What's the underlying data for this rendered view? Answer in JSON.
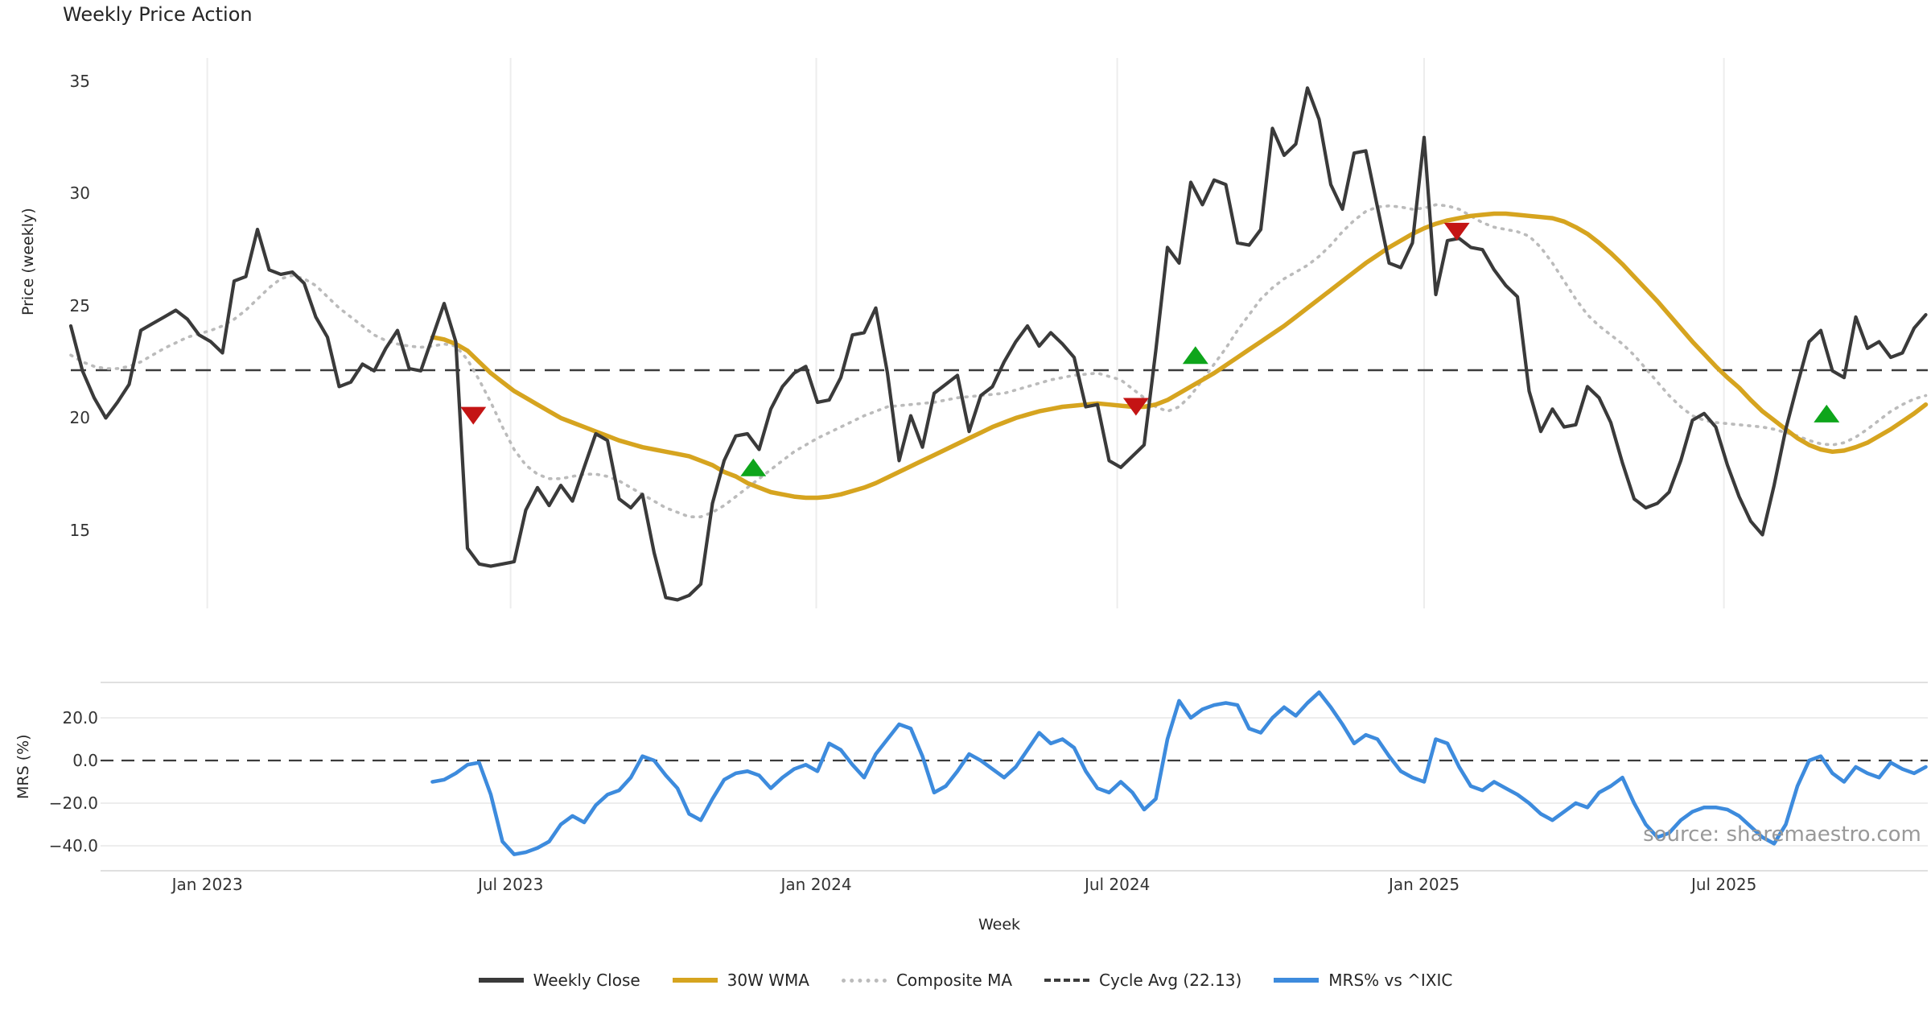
{
  "title": "Weekly Price Action",
  "source_text": "source: sharemaestro.com",
  "axes": {
    "price_label": "Price (weekly)",
    "mrs_label": "MRS (%)",
    "week_label": "Week",
    "price_ticks": [
      {
        "label": "35",
        "value": 35
      },
      {
        "label": "30",
        "value": 30
      },
      {
        "label": "25",
        "value": 25
      },
      {
        "label": "20",
        "value": 20
      },
      {
        "label": "15",
        "value": 15
      }
    ],
    "mrs_ticks": [
      {
        "label": "20.0",
        "value": 20
      },
      {
        "label": "0.0",
        "value": 0
      },
      {
        "label": "−20.0",
        "value": -20
      },
      {
        "label": "−40.0",
        "value": -40
      }
    ],
    "x_ticks": [
      {
        "label": "Jan 2023",
        "week": 11.7
      },
      {
        "label": "Jul 2023",
        "week": 37.7
      },
      {
        "label": "Jan 2024",
        "week": 63.9
      },
      {
        "label": "Jul 2024",
        "week": 89.7
      },
      {
        "label": "Jan 2025",
        "week": 116.0
      },
      {
        "label": "Jul 2025",
        "week": 141.7
      }
    ]
  },
  "colors": {
    "close": "#3a3a3a",
    "wma": "#d6a41f",
    "composite": "#bbbbbb",
    "cycle_avg": "#3c3c3c",
    "mrs": "#3d8bdd",
    "buy": "#0ea51b",
    "sell": "#c41414",
    "gridline": "#ededed",
    "panel_border": "#e0e0e0"
  },
  "legend": [
    {
      "label": "Weekly Close",
      "color": "#3a3a3a",
      "style": "solid"
    },
    {
      "label": "30W WMA",
      "color": "#d6a41f",
      "style": "solid"
    },
    {
      "label": "Composite MA",
      "color": "#bbbbbb",
      "style": "dotted"
    },
    {
      "label": "Cycle Avg (22.13)",
      "color": "#3c3c3c",
      "style": "dashed"
    },
    {
      "label": "MRS% vs ^IXIC",
      "color": "#3d8bdd",
      "style": "solid"
    }
  ],
  "chart_data": [
    {
      "type": "line",
      "panel": "price",
      "title": "Weekly Price Action",
      "xlabel": "Week",
      "ylabel": "Price (weekly)",
      "ylim": [
        11.5,
        36.5
      ],
      "grid": "vertical-only",
      "cycle_avg": 22.13,
      "x_unit": "weeks, week 0 ≈ Nov 2022, 14.5 px/week",
      "series": [
        {
          "name": "Weekly Close",
          "style": "solid",
          "start_week": 0,
          "values": [
            24.1,
            22.1,
            20.9,
            20.0,
            20.7,
            21.5,
            23.9,
            24.2,
            24.5,
            24.8,
            24.4,
            23.7,
            23.4,
            22.9,
            26.1,
            26.3,
            28.4,
            26.6,
            26.4,
            26.5,
            26.0,
            24.5,
            23.6,
            21.4,
            21.6,
            22.4,
            22.1,
            23.1,
            23.9,
            22.2,
            22.1,
            23.6,
            25.1,
            23.4,
            14.2,
            13.5,
            13.4,
            13.5,
            13.6,
            15.9,
            16.9,
            16.1,
            17.0,
            16.3,
            17.8,
            19.3,
            19.0,
            16.4,
            16.0,
            16.6,
            14.0,
            12.0,
            11.9,
            12.1,
            12.6,
            16.2,
            18.1,
            19.2,
            19.3,
            18.6,
            20.4,
            21.4,
            22.0,
            22.3,
            20.7,
            20.8,
            21.8,
            23.7,
            23.8,
            24.9,
            22.0,
            18.1,
            20.1,
            18.7,
            21.1,
            21.5,
            21.9,
            19.4,
            21.0,
            21.4,
            22.5,
            23.4,
            24.1,
            23.2,
            23.8,
            23.3,
            22.7,
            20.5,
            20.6,
            18.1,
            17.8,
            18.3,
            18.8,
            23.0,
            27.6,
            26.9,
            30.5,
            29.5,
            30.6,
            30.4,
            27.8,
            27.7,
            28.4,
            32.9,
            31.7,
            32.2,
            34.7,
            33.3,
            30.4,
            29.3,
            31.8,
            31.9,
            29.4,
            26.9,
            26.7,
            27.8,
            32.5,
            25.5,
            27.9,
            28.0,
            27.6,
            27.5,
            26.6,
            25.9,
            25.4,
            21.2,
            19.4,
            20.4,
            19.6,
            19.7,
            21.4,
            20.9,
            19.8,
            18.0,
            16.4,
            16.0,
            16.2,
            16.7,
            18.1,
            19.9,
            20.2,
            19.6,
            17.9,
            16.5,
            15.4,
            14.8,
            17.0,
            19.5,
            21.5,
            23.4,
            23.9,
            22.1,
            21.8,
            24.5,
            23.1,
            23.4,
            22.7,
            22.9,
            24.0,
            24.6
          ]
        },
        {
          "name": "30W WMA",
          "style": "solid",
          "start_week": 31,
          "values": [
            23.6,
            23.5,
            23.3,
            23.0,
            22.5,
            22.0,
            21.6,
            21.2,
            20.9,
            20.6,
            20.3,
            20.0,
            19.8,
            19.6,
            19.4,
            19.2,
            19.0,
            18.85,
            18.7,
            18.6,
            18.5,
            18.4,
            18.3,
            18.1,
            17.9,
            17.6,
            17.4,
            17.1,
            16.9,
            16.7,
            16.6,
            16.5,
            16.45,
            16.45,
            16.5,
            16.6,
            16.75,
            16.9,
            17.1,
            17.35,
            17.6,
            17.85,
            18.1,
            18.35,
            18.6,
            18.85,
            19.1,
            19.35,
            19.6,
            19.8,
            20.0,
            20.15,
            20.3,
            20.4,
            20.5,
            20.55,
            20.6,
            20.65,
            20.6,
            20.55,
            20.5,
            20.5,
            20.6,
            20.8,
            21.1,
            21.4,
            21.7,
            22.0,
            22.35,
            22.7,
            23.05,
            23.4,
            23.75,
            24.1,
            24.5,
            24.9,
            25.3,
            25.7,
            26.1,
            26.5,
            26.9,
            27.25,
            27.6,
            27.9,
            28.2,
            28.45,
            28.65,
            28.8,
            28.9,
            29.0,
            29.05,
            29.1,
            29.1,
            29.05,
            29.0,
            28.95,
            28.9,
            28.75,
            28.5,
            28.2,
            27.8,
            27.35,
            26.85,
            26.3,
            25.75,
            25.2,
            24.6,
            24.0,
            23.4,
            22.85,
            22.3,
            21.8,
            21.35,
            20.8,
            20.3,
            19.9,
            19.5,
            19.1,
            18.8,
            18.6,
            18.5,
            18.55,
            18.7,
            18.9,
            19.2,
            19.5,
            19.85,
            20.2,
            20.6
          ]
        },
        {
          "name": "Composite MA",
          "style": "dotted",
          "start_week": 0,
          "values": [
            22.8,
            22.5,
            22.3,
            22.2,
            22.2,
            22.3,
            22.5,
            22.8,
            23.1,
            23.35,
            23.6,
            23.75,
            23.9,
            24.1,
            24.4,
            24.8,
            25.3,
            25.8,
            26.2,
            26.35,
            26.2,
            25.9,
            25.4,
            24.9,
            24.5,
            24.1,
            23.7,
            23.45,
            23.3,
            23.2,
            23.15,
            23.2,
            23.3,
            23.2,
            22.6,
            21.7,
            20.7,
            19.6,
            18.6,
            17.9,
            17.5,
            17.3,
            17.3,
            17.4,
            17.5,
            17.5,
            17.4,
            17.2,
            16.9,
            16.6,
            16.3,
            16.0,
            15.8,
            15.6,
            15.6,
            15.8,
            16.1,
            16.5,
            16.9,
            17.3,
            17.7,
            18.1,
            18.5,
            18.8,
            19.1,
            19.35,
            19.6,
            19.85,
            20.1,
            20.3,
            20.5,
            20.55,
            20.6,
            20.65,
            20.7,
            20.8,
            20.9,
            20.95,
            21.0,
            21.05,
            21.1,
            21.25,
            21.4,
            21.55,
            21.7,
            21.8,
            21.9,
            21.95,
            22.0,
            21.85,
            21.7,
            21.3,
            20.9,
            20.5,
            20.3,
            20.5,
            21.0,
            21.7,
            22.4,
            23.1,
            23.9,
            24.6,
            25.3,
            25.8,
            26.2,
            26.5,
            26.8,
            27.2,
            27.7,
            28.3,
            28.8,
            29.2,
            29.4,
            29.45,
            29.4,
            29.3,
            29.35,
            29.5,
            29.45,
            29.3,
            29.0,
            28.7,
            28.5,
            28.4,
            28.3,
            28.1,
            27.6,
            26.9,
            26.1,
            25.3,
            24.6,
            24.1,
            23.7,
            23.3,
            22.8,
            22.2,
            21.6,
            21.0,
            20.5,
            20.1,
            19.9,
            19.8,
            19.75,
            19.7,
            19.65,
            19.6,
            19.5,
            19.35,
            19.2,
            19.0,
            18.85,
            18.8,
            18.9,
            19.15,
            19.5,
            19.9,
            20.3,
            20.6,
            20.85,
            21.0
          ]
        }
      ],
      "buy_signals": [
        [
          58.5,
          17.8
        ],
        [
          96.4,
          22.8
        ],
        [
          150.5,
          20.2
        ]
      ],
      "sell_signals": [
        [
          34.5,
          20.1
        ],
        [
          91.3,
          20.5
        ],
        [
          118.8,
          28.3
        ]
      ]
    },
    {
      "type": "line",
      "panel": "mrs",
      "ylabel": "MRS (%)",
      "ylim": [
        -48,
        36
      ],
      "zero_line": true,
      "series": [
        {
          "name": "MRS% vs ^IXIC",
          "style": "solid",
          "start_week": 31,
          "values": [
            -10,
            -9,
            -6,
            -2,
            -1,
            -16,
            -38,
            -44,
            -43,
            -41,
            -38,
            -30,
            -26,
            -29,
            -21,
            -16,
            -14,
            -8,
            2,
            0,
            -7,
            -13,
            -25,
            -28,
            -18,
            -9,
            -6,
            -5,
            -7,
            -13,
            -8,
            -4,
            -2,
            -5,
            8,
            5,
            -2,
            -8,
            3,
            10,
            17,
            15,
            2,
            -15,
            -12,
            -5,
            3,
            0,
            -4,
            -8,
            -3,
            5,
            13,
            8,
            10,
            6,
            -5,
            -13,
            -15,
            -10,
            -15,
            -23,
            -18,
            10,
            28,
            20,
            24,
            26,
            27,
            26,
            15,
            13,
            20,
            25,
            21,
            27,
            32,
            25,
            17,
            8,
            12,
            10,
            2,
            -5,
            -8,
            -10,
            10,
            8,
            -3,
            -12,
            -14,
            -10,
            -13,
            -16,
            -20,
            -25,
            -28,
            -24,
            -20,
            -22,
            -15,
            -12,
            -8,
            -20,
            -30,
            -36,
            -34,
            -28,
            -24,
            -22,
            -22,
            -23,
            -26,
            -31,
            -36,
            -39,
            -30,
            -12,
            0,
            2,
            -6,
            -10,
            -3,
            -6,
            -8,
            -1,
            -4,
            -6,
            -3
          ]
        }
      ]
    }
  ]
}
